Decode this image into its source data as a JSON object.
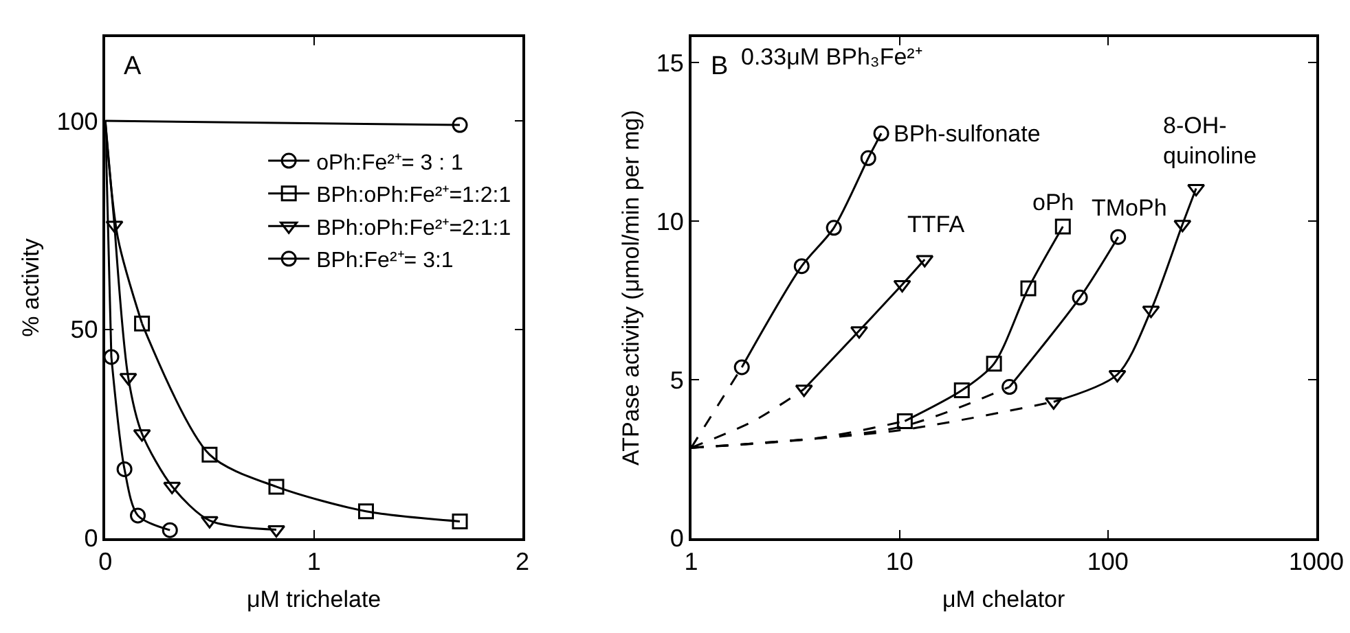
{
  "chart_data": [
    {
      "type": "line",
      "title": "A",
      "xlabel": "μM trichelate",
      "ylabel": "% activity",
      "xlim": [
        0,
        2
      ],
      "ylim": [
        0,
        120
      ],
      "xticks": [
        0,
        1,
        2
      ],
      "yticks": [
        0,
        50,
        100
      ],
      "legend": "right",
      "line_style": "solid",
      "series": [
        {
          "name": "oPh:Fe²⁺= 3 : 1",
          "color": "#000000",
          "marker": "circle",
          "x": [
            1.7
          ],
          "values": [
            99
          ]
        },
        {
          "name": "BPh:oPh:Fe²⁺=1:2:1",
          "color": "#000000",
          "marker": "square",
          "x": [
            0.176,
            0.5,
            0.82,
            1.25,
            1.7
          ],
          "values": [
            51.4,
            20,
            12.3,
            6.4,
            4
          ]
        },
        {
          "name": "BPh:oPh:Fe²⁺=2:1:1",
          "color": "#000000",
          "marker": "triangle",
          "x": [
            0.044,
            0.11,
            0.176,
            0.32,
            0.5,
            0.82
          ],
          "values": [
            75,
            38.5,
            25,
            12.4,
            4.2,
            2
          ]
        },
        {
          "name": "BPh:Fe²⁺= 3:1",
          "color": "#000000",
          "marker": "circle",
          "x": [
            0.029,
            0.092,
            0.156,
            0.31
          ],
          "values": [
            43.4,
            16.5,
            5.4,
            1.9
          ]
        },
        {
          "color": "#000000",
          "x": [
            0,
            1.7
          ],
          "values": [
            100,
            99
          ]
        },
        {
          "color": "#000000",
          "x": [
            0,
            0.06,
            0.176
          ],
          "values": [
            100,
            72,
            51.4
          ]
        },
        {
          "color": "#000000",
          "x": [
            0,
            0.044
          ],
          "values": [
            100,
            75
          ]
        },
        {
          "color": "#000000",
          "x": [
            0,
            0.029
          ],
          "values": [
            100,
            43.4
          ]
        }
      ]
    },
    {
      "type": "line",
      "title": "B",
      "subtitle": "0.33μM BPh₃Fe²⁺",
      "xlabel": "μM chelator",
      "ylabel": "ATPase activity (μmol/min per mg)",
      "log": "x",
      "xlim": [
        1,
        1000
      ],
      "ylim": [
        0,
        15.8
      ],
      "xticks": [
        1,
        10,
        100,
        1000
      ],
      "yticks": [
        0,
        5,
        10,
        15
      ],
      "legend": false,
      "series": [
        {
          "color": "#000000",
          "line_style": "dashed",
          "x": [
            1,
            1.75
          ],
          "values": [
            2.85,
            5.39
          ]
        },
        {
          "name": "BPh-sulfonate",
          "color": "#000000",
          "marker": "circle",
          "line_style": "solid",
          "x": [
            1.75,
            3.39,
            4.84,
            7.08,
            8.17
          ],
          "values": [
            5.39,
            8.58,
            9.79,
            11.99,
            12.77
          ]
        },
        {
          "color": "#000000",
          "line_style": "dashed",
          "x": [
            1,
            2,
            3.48
          ],
          "values": [
            2.85,
            3.7,
            4.7
          ]
        },
        {
          "name": "TTFA",
          "color": "#000000",
          "marker": "triangle",
          "line_style": "solid",
          "x": [
            3.48,
            6.4,
            10.3,
            13.2
          ],
          "values": [
            4.7,
            6.54,
            8.0,
            8.79
          ]
        },
        {
          "color": "#000000",
          "line_style": "dashed",
          "x": [
            1,
            4,
            10.6
          ],
          "values": [
            2.85,
            3.15,
            3.69
          ]
        },
        {
          "name": "oPh",
          "color": "#000000",
          "marker": "square",
          "line_style": "solid",
          "x": [
            10.6,
            19.9,
            28.4,
            41.5,
            60.8
          ],
          "values": [
            3.69,
            4.66,
            5.5,
            7.88,
            9.83
          ]
        },
        {
          "color": "#000000",
          "line_style": "dashed",
          "x": [
            1,
            10,
            33.7
          ],
          "values": [
            2.85,
            3.5,
            4.77
          ]
        },
        {
          "name": "TMoPh",
          "color": "#000000",
          "marker": "circle",
          "line_style": "solid",
          "x": [
            33.7,
            73.4,
            112
          ],
          "values": [
            4.77,
            7.59,
            9.5
          ]
        },
        {
          "color": "#000000",
          "line_style": "dashed",
          "x": [
            1,
            10,
            54.9
          ],
          "values": [
            2.85,
            3.4,
            4.3
          ]
        },
        {
          "name": "8-OH-\nquinoline",
          "color": "#000000",
          "marker": "triangle",
          "line_style": "solid",
          "x": [
            54.9,
            111,
            161,
            228,
            265
          ],
          "values": [
            4.3,
            5.16,
            7.19,
            9.9,
            11.03
          ]
        }
      ]
    }
  ]
}
